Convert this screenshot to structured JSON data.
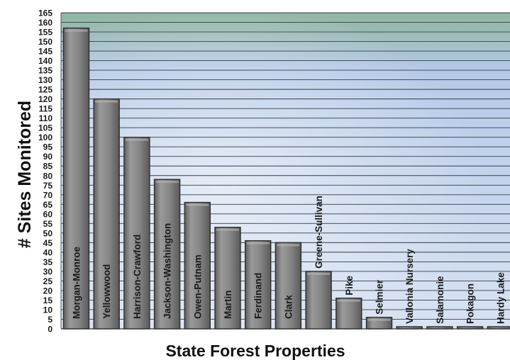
{
  "chart_data": {
    "type": "bar",
    "title": "",
    "xlabel": "State Forest Properties",
    "ylabel": "# Sites Monitored",
    "ylim": [
      0,
      165
    ],
    "ytick_step": 5,
    "grid": true,
    "categories": [
      "Morgan-Monroe",
      "Yellowwood",
      "Harrison-Crawford",
      "Jackson-Washington",
      "Owen-Putnam",
      "Martin",
      "Ferdinand",
      "Clark",
      "Greene-Sullivan",
      "Pike",
      "Selmier",
      "Vallonia Nursery",
      "Salamonie",
      "Pokagon",
      "Hardy Lake"
    ],
    "values": [
      157,
      120,
      100,
      78,
      66,
      53,
      46,
      45,
      30,
      16,
      6,
      1,
      1,
      1,
      1
    ],
    "colors": {
      "bar_fill": "#7d7d7d",
      "bar_stroke": "#2e2e2e",
      "plot_top": "#8fb5a0",
      "plot_bottom": "#d8e3f4",
      "grid": "#3c3c3c"
    }
  }
}
